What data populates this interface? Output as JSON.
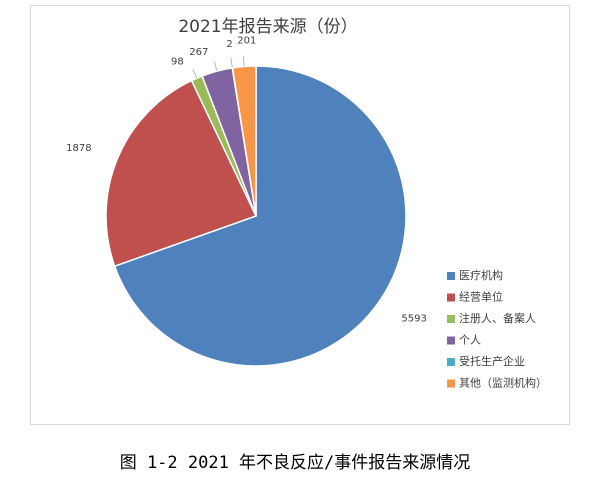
{
  "chart_data": {
    "type": "pie",
    "title": "2021年报告来源（份）",
    "categories": [
      "医疗机构",
      "经营单位",
      "注册人、备案人",
      "个人",
      "受托生产企业",
      "其他（监测机构）"
    ],
    "values": [
      5593,
      1878,
      98,
      267,
      2,
      201
    ],
    "colors": [
      "#4f81bd",
      "#c0504d",
      "#9bbb59",
      "#8064a2",
      "#4bacc6",
      "#f79646"
    ],
    "legend": "right"
  },
  "caption": "图 1-2  2021 年不良反应/事件报告来源情况"
}
